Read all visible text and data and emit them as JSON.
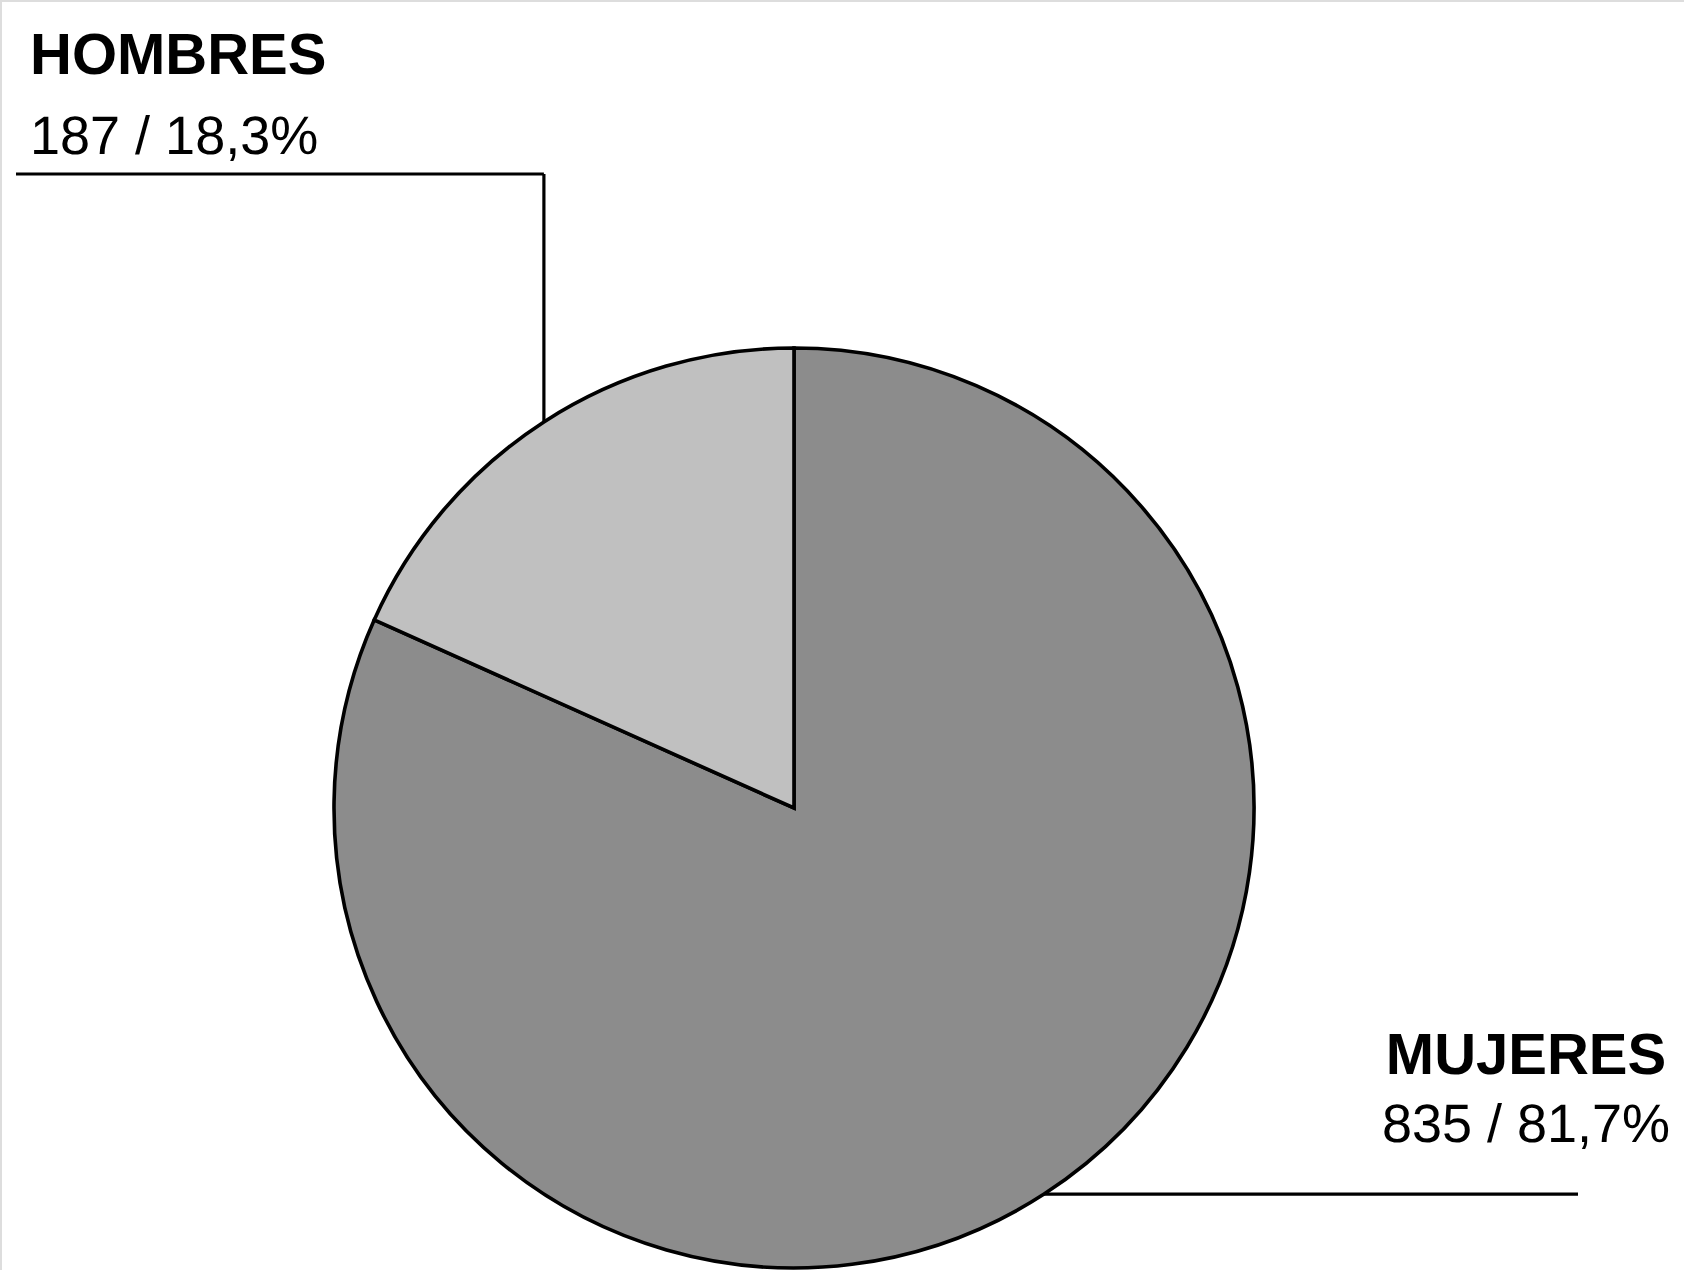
{
  "chart_data": {
    "type": "pie",
    "categories": [
      "MUJERES",
      "HOMBRES"
    ],
    "values": [
      835,
      187
    ],
    "colors": [
      "#8c8c8c",
      "#c0c0c0"
    ],
    "value_labels": [
      "835 / 81,7%",
      "187 / 18,3%"
    ]
  }
}
